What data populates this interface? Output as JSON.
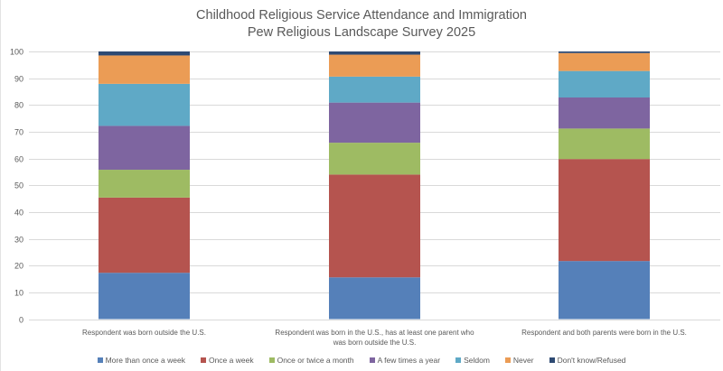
{
  "chart_data": {
    "type": "bar",
    "stacked": true,
    "title": "Childhood Religious Service Attendance and Immigration",
    "subtitle": "Pew Religious Landscape Survey 2025",
    "xlabel": "",
    "ylabel": "",
    "ylim": [
      0,
      100
    ],
    "yticks": [
      0,
      10,
      20,
      30,
      40,
      50,
      60,
      70,
      80,
      90,
      100
    ],
    "grid": true,
    "legend_position": "bottom",
    "categories": [
      [
        "Respondent was born outside the U.S."
      ],
      [
        "Respondent was born in the U.S., has at least one parent who",
        "was born outside the U.S."
      ],
      [
        "Respondent and both parents were born in the U.S."
      ]
    ],
    "series": [
      {
        "name": "More than once a week",
        "color": "#5580B9",
        "values": [
          17.3,
          15.6,
          21.7
        ]
      },
      {
        "name": "Once a week",
        "color": "#B5544F",
        "values": [
          28.1,
          38.4,
          38.1
        ]
      },
      {
        "name": "Once or twice a month",
        "color": "#9EBB63",
        "values": [
          10.4,
          11.9,
          11.4
        ]
      },
      {
        "name": "A few times a year",
        "color": "#7E65A0",
        "values": [
          16.4,
          15.0,
          11.6
        ]
      },
      {
        "name": "Seldom",
        "color": "#5FA9C6",
        "values": [
          15.7,
          9.7,
          9.9
        ]
      },
      {
        "name": "Never",
        "color": "#EB9C55",
        "values": [
          10.6,
          8.2,
          6.7
        ]
      },
      {
        "name": "Don't know/Refused",
        "color": "#2E4A73",
        "values": [
          1.5,
          1.2,
          0.6
        ]
      }
    ]
  }
}
